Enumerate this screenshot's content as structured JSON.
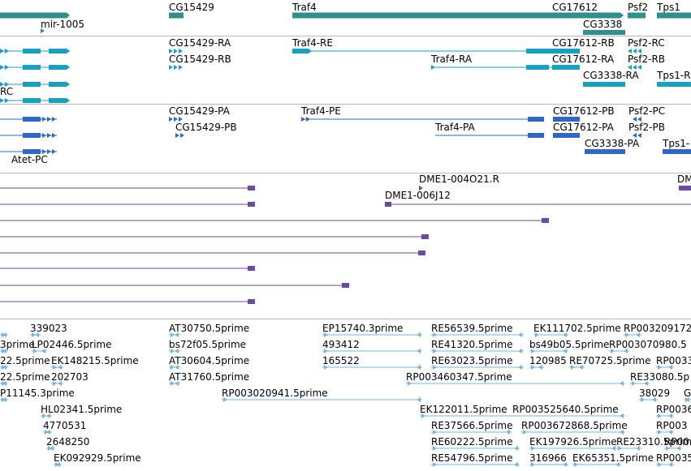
{
  "colors": {
    "gene": "#2f8f8b",
    "transcript_fly": "#17a0c2",
    "polypeptide": "#2e67c4",
    "clone": "#6a4aa8",
    "est": "#7ab3dd",
    "divider": "#b8b8b8"
  },
  "panels": {
    "gene": {
      "labels": [
        "mir-1005",
        "CG15429",
        "Traf4",
        "CG17612",
        "CG3338",
        "Psf2",
        "Tps1"
      ]
    },
    "transcript": {
      "labels": [
        "CG15429-RA",
        "CG15429-RB",
        "Traf4-RE",
        "Traf4-RA",
        "CG17612-RB",
        "CG17612-RA",
        "Psf2-RC",
        "Psf2-RB",
        "CG3338-RA",
        "Tps1-R",
        "RC"
      ]
    },
    "protein": {
      "labels": [
        "CG15429-PA",
        "CG15429-PB",
        "Traf4-PE",
        "Traf4-PA",
        "CG17612-PB",
        "CG17612-PA",
        "Psf2-PC",
        "Psf2-PB",
        "CG3338-PA",
        "Tps1-",
        "Atet-PC"
      ]
    },
    "clone": {
      "labels": [
        "DME1-004O21.R",
        "DME1-006J12",
        "DM"
      ]
    },
    "est": {
      "labels": [
        "339023",
        "AT30750.5prime",
        "EP15740.3prime",
        "RE56539.5prime",
        "EK111702.5prime",
        "RP003209172",
        "3prime",
        "LP02446.5prime",
        "bs72f05.5prime",
        "493412",
        "RE41320.5prime",
        "bs49b05.5prime",
        "RP003070980.5",
        "22.5prime",
        "EK148215.5prime",
        "AT30604.5prime",
        "165522",
        "RE63023.5prime",
        "120985",
        "RE70725.5prime",
        "RP0033",
        "22.5prime",
        "202703",
        "AT31760.5prime",
        "RP003460347.5prime",
        "RE33080.5p",
        "P11145.3prime",
        "RP003020941.5prime",
        "38029",
        "G",
        "HL02341.5prime",
        "EK122011.5prime",
        "RP003525640.5prime",
        "RP0036",
        "4770531",
        "RE37566.5prime",
        "RP003672868.5prime",
        "RP003",
        "2648250",
        "RE60222.5prime",
        "EK197926.5prime",
        "RE23310.5prime",
        "RP00",
        "EK092929.5prime",
        "RE54796.5prime",
        "316966",
        "EK65351.5prime",
        "RP0035"
      ]
    }
  }
}
